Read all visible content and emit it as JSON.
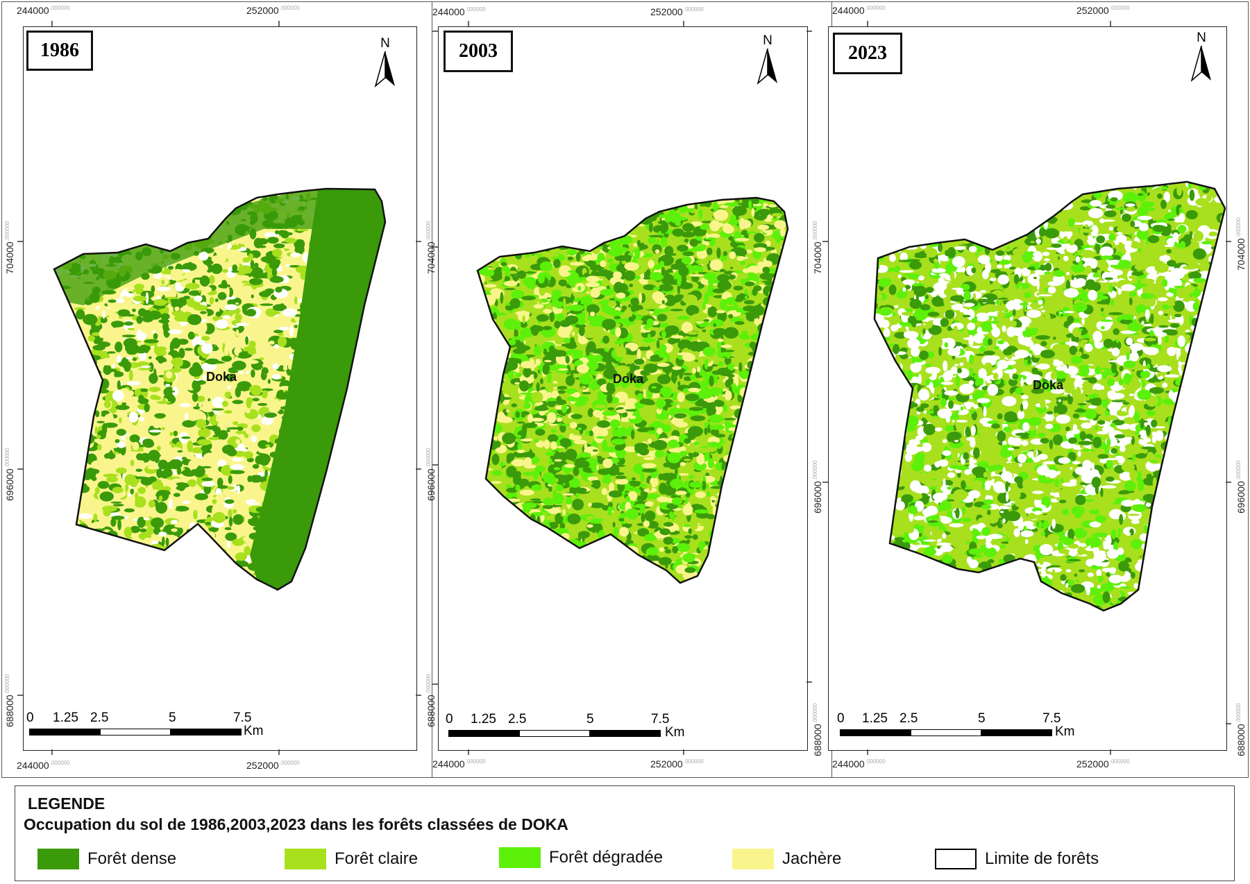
{
  "maps": [
    {
      "year": "1986",
      "place": "Doka",
      "north": "N"
    },
    {
      "year": "2003",
      "place": "Doka",
      "north": "N"
    },
    {
      "year": "2023",
      "place": "Doka",
      "north": "N"
    }
  ],
  "coords": {
    "x_left": "244000",
    "x_right": "252000",
    "y_top": "704000",
    "y_mid": "696000",
    "y_bottom": "688000",
    "frac": ".000000"
  },
  "scalebar": {
    "labels": [
      "0",
      "1.25",
      "2.5",
      "5",
      "7.5"
    ],
    "unit": "Km"
  },
  "legend": {
    "title": "LEGENDE",
    "subtitle": "Occupation du sol de 1986,2003,2023 dans les forêts classées de DOKA",
    "items": [
      {
        "label": "Forêt dense",
        "color": "#3a9a0a"
      },
      {
        "label": "Forêt claire",
        "color": "#a8e01e"
      },
      {
        "label": "Forêt dégradée",
        "color": "#5cf00a"
      },
      {
        "label": "Jachère",
        "color": "#f9f58c"
      },
      {
        "label": "Limite de forêts",
        "color": "#ffffff"
      }
    ]
  },
  "colors": {
    "dense": "#3a9a0a",
    "claire": "#a8e01e",
    "degradee": "#5cf00a",
    "jachere": "#f9f58c",
    "bare": "#ffffff"
  }
}
